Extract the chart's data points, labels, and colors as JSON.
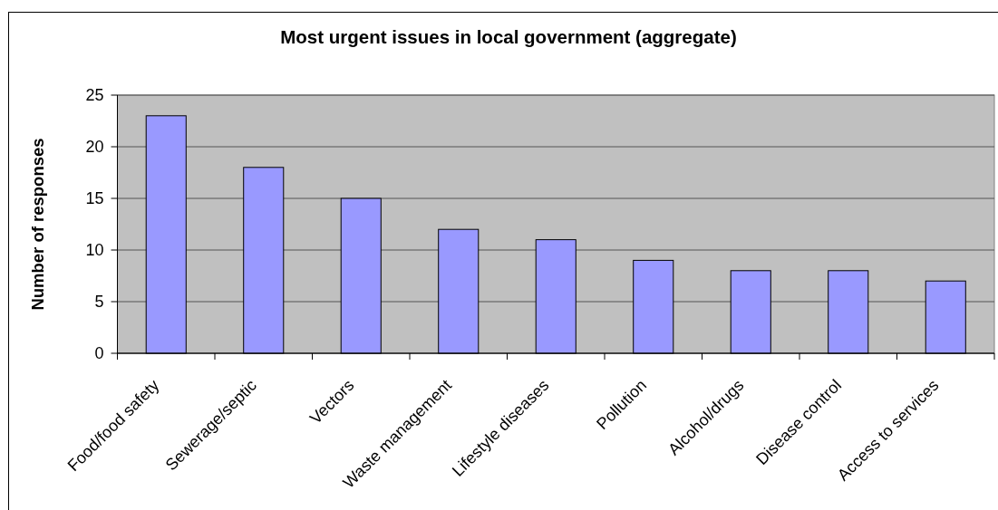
{
  "chart_data": {
    "type": "bar",
    "title": "Most urgent issues in local government (aggregate)",
    "ylabel": "Number of responses",
    "categories": [
      "Food/food safety",
      "Sewerage/septic",
      "Vectors",
      "Waste management",
      "Lifestyle diseases",
      "Pollution",
      "Alcohol/drugs",
      "Disease control",
      "Access to services"
    ],
    "values": [
      23,
      18,
      15,
      12,
      11,
      9,
      8,
      8,
      7
    ],
    "color": "#9999ff",
    "ylim": [
      0,
      25
    ],
    "yticks": [
      0,
      5,
      10,
      15,
      20,
      25
    ],
    "grid": "y"
  }
}
